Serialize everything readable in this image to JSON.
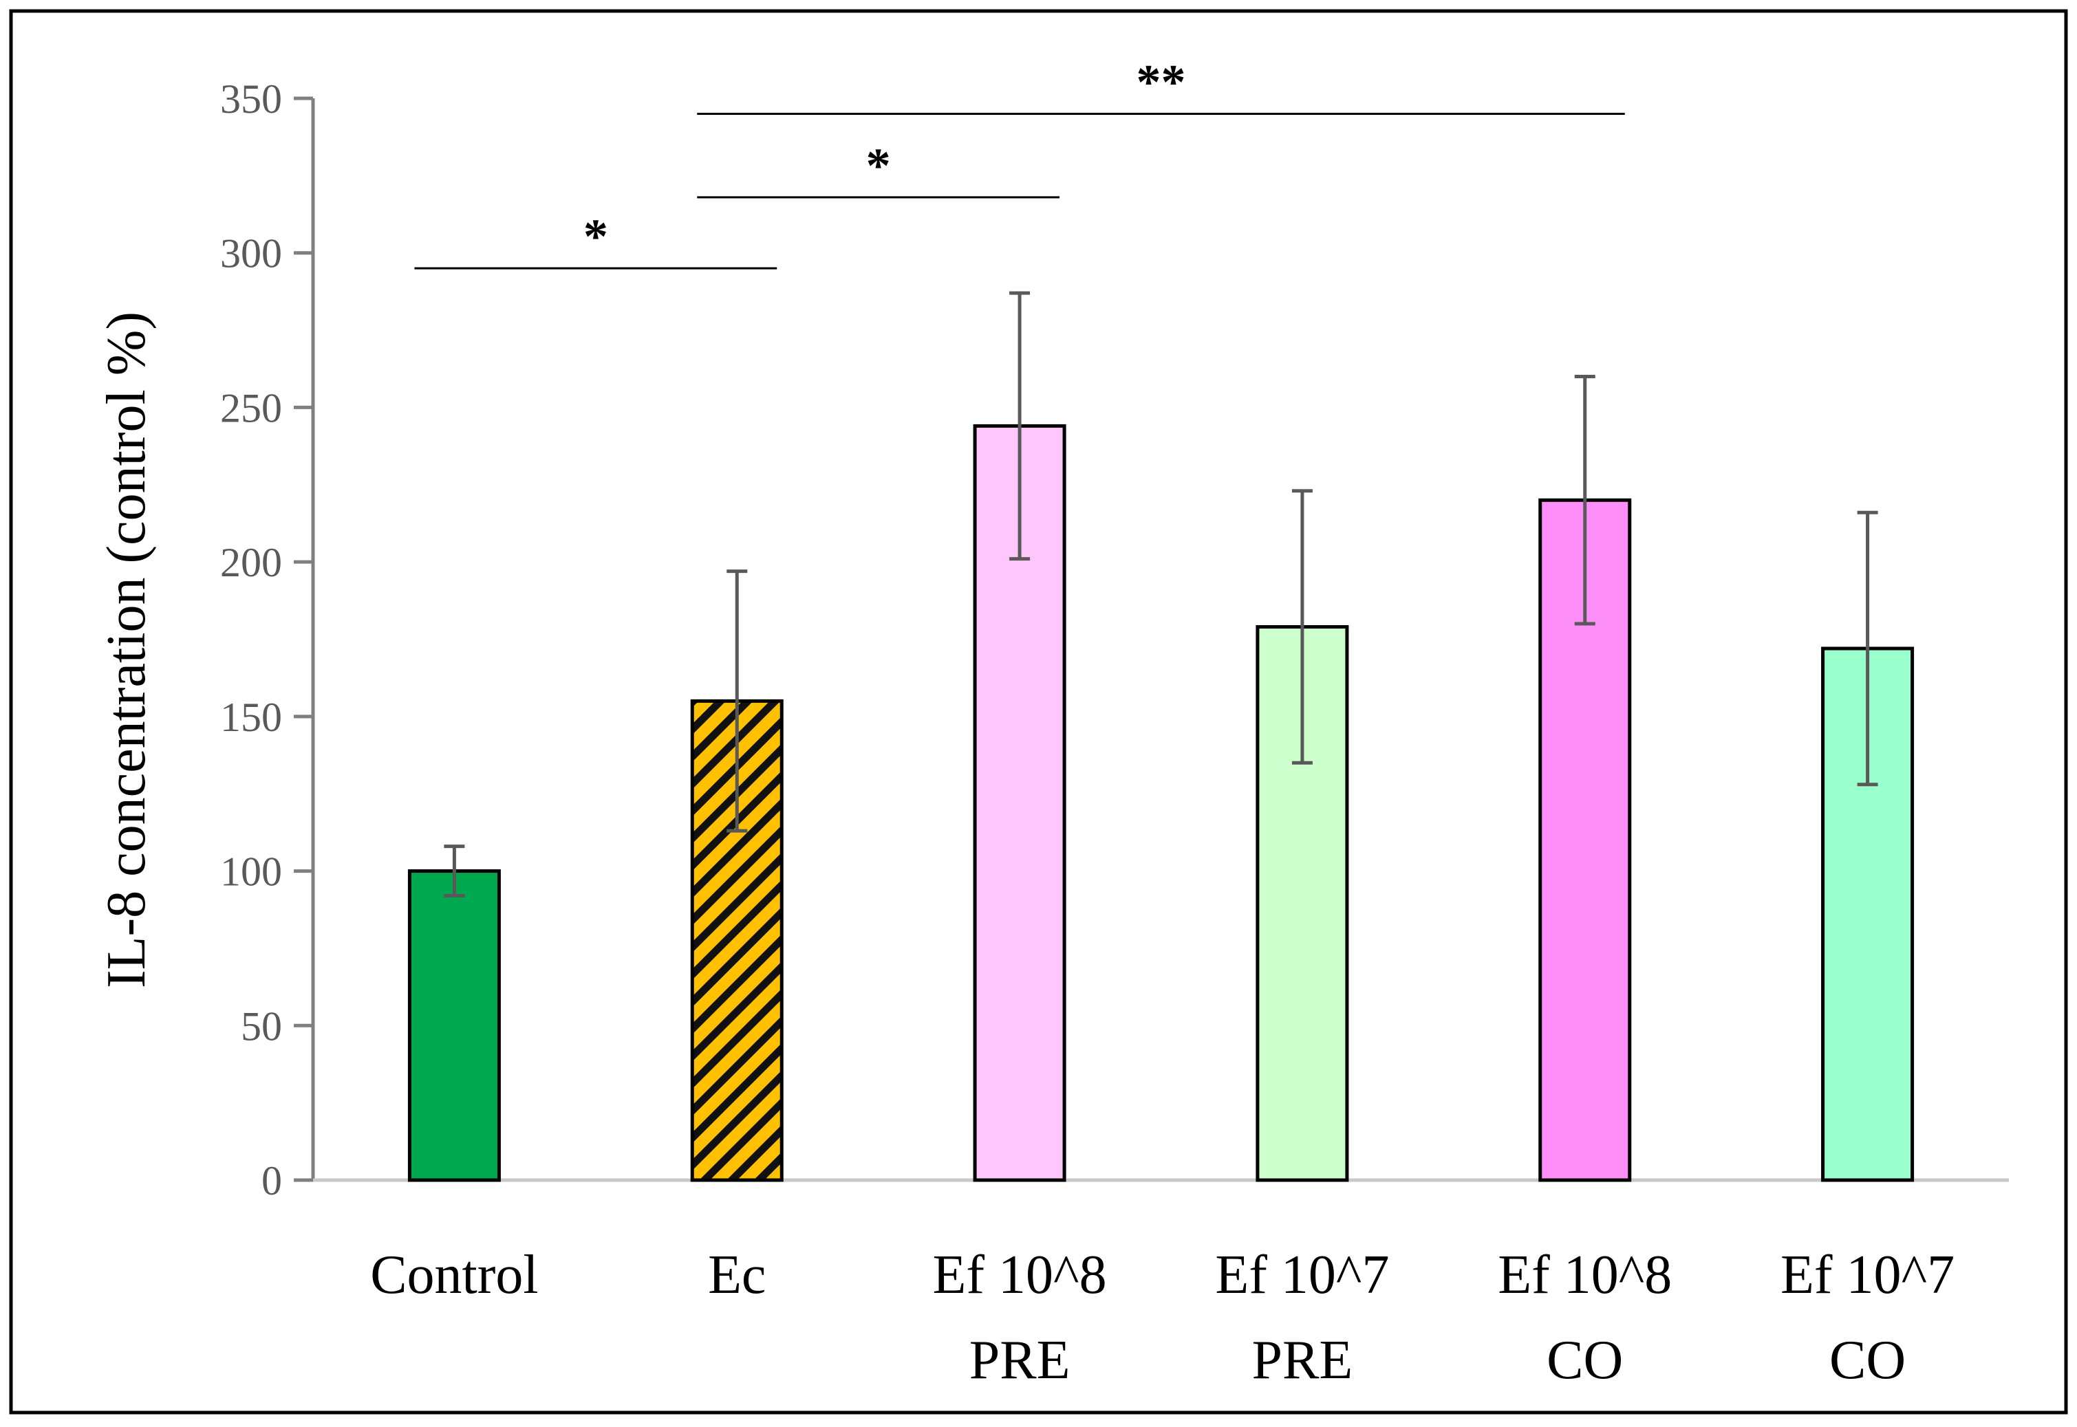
{
  "chart_data": {
    "type": "bar",
    "title": "",
    "xlabel": "",
    "ylabel": "IL-8 concentration (control %)",
    "ylim": [
      0,
      350
    ],
    "yticks": [
      0,
      50,
      100,
      150,
      200,
      250,
      300,
      350
    ],
    "grid": false,
    "categories": [
      [
        "Control"
      ],
      [
        "Ec"
      ],
      [
        "Ef 10^8",
        "PRE"
      ],
      [
        "Ef 10^7",
        "PRE"
      ],
      [
        "Ef 10^8",
        "CO"
      ],
      [
        "Ef 10^7",
        "CO"
      ]
    ],
    "values": [
      100,
      155,
      244,
      179,
      220,
      172
    ],
    "errors": [
      8,
      42,
      43,
      44,
      40,
      44
    ],
    "colors": [
      "#00a94f",
      "#ffc000",
      "#ffc6fb",
      "#ccffcc",
      "#ff8ff8",
      "#99ffcc"
    ],
    "patterns": [
      "solid",
      "hatched",
      "solid",
      "solid",
      "solid",
      "solid"
    ],
    "significance": [
      {
        "from": 0,
        "to": 1,
        "label": "*",
        "y": 295
      },
      {
        "from": 1,
        "to": 2,
        "label": "*",
        "y": 318
      },
      {
        "from": 1,
        "to": 4,
        "label": "**",
        "y": 345
      }
    ]
  }
}
